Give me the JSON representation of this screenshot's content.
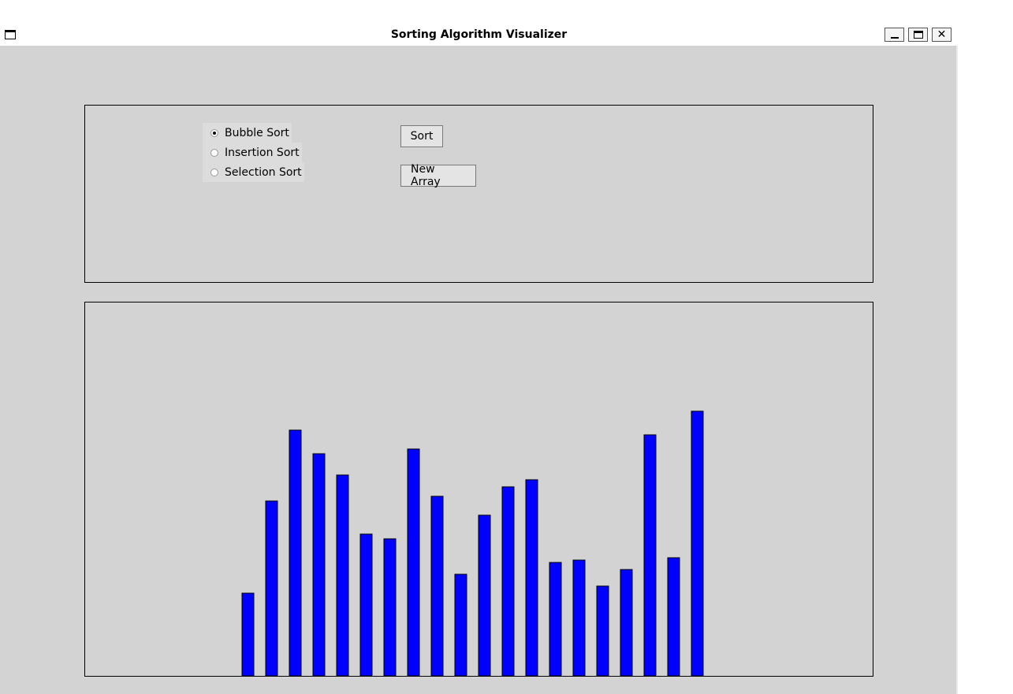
{
  "window": {
    "title": "Sorting Algorithm Visualizer"
  },
  "controls": {
    "algorithms": [
      {
        "label": "Bubble Sort",
        "selected": true
      },
      {
        "label": "Insertion Sort",
        "selected": false
      },
      {
        "label": "Selection Sort",
        "selected": false
      }
    ],
    "sort_label": "Sort",
    "new_array_label": "New Array"
  },
  "colors": {
    "bar_fill": "#0000ff",
    "bar_stroke": "#000000",
    "background": "#d3d3d3"
  },
  "chart_data": {
    "type": "bar",
    "values": [
      35,
      74,
      104,
      94,
      85,
      60,
      58,
      96,
      76,
      43,
      68,
      80,
      83,
      48,
      49,
      38,
      45,
      102,
      50,
      112
    ]
  }
}
